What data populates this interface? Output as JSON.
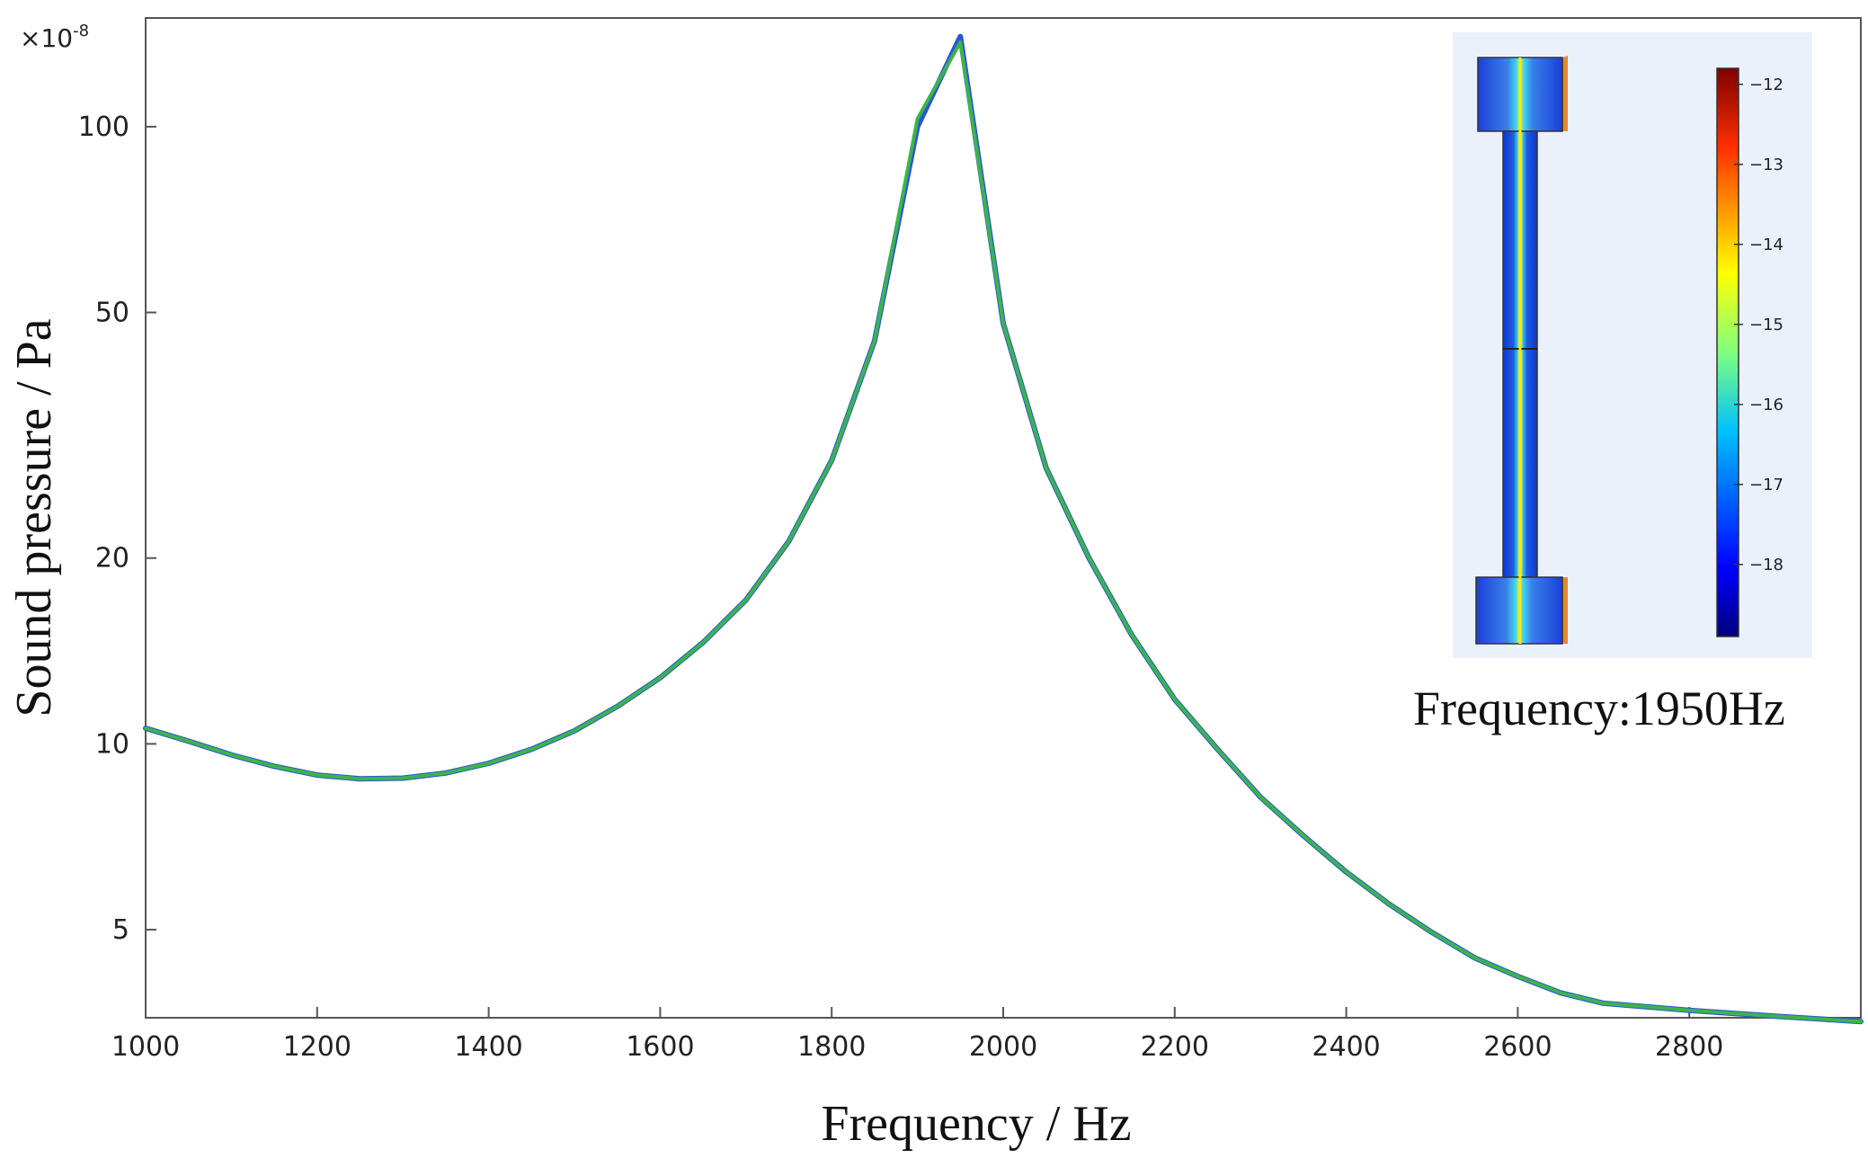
{
  "chart_data": {
    "type": "line",
    "xlabel": "Frequency / Hz",
    "ylabel": "Sound pressure / Pa",
    "y_multiplier": "×10",
    "y_multiplier_exp": "-8",
    "y_scale": "log",
    "xlim": [
      1000,
      3000
    ],
    "ylim": [
      3.6,
      150
    ],
    "x_ticks": [
      1000,
      1200,
      1400,
      1600,
      1800,
      2000,
      2200,
      2400,
      2600,
      2800
    ],
    "x_tick_labels": [
      "1000",
      "1200",
      "1400",
      "1600",
      "1800",
      "2000",
      "2200",
      "2400",
      "2600",
      "2800"
    ],
    "y_ticks": [
      5,
      10,
      20,
      50,
      100
    ],
    "y_tick_labels": [
      "5",
      "10",
      "20",
      "50",
      "100"
    ],
    "grid": false,
    "series": [
      {
        "color": "#2a56d6",
        "x": [
          1000,
          1050,
          1100,
          1150,
          1200,
          1250,
          1300,
          1350,
          1400,
          1450,
          1500,
          1550,
          1600,
          1650,
          1700,
          1750,
          1800,
          1850,
          1900,
          1950,
          2000,
          2050,
          2100,
          2150,
          2200,
          2250,
          2300,
          2350,
          2400,
          2450,
          2500,
          2550,
          2600,
          2650,
          2700,
          2800,
          2900,
          3000
        ],
        "y": [
          10.6,
          10.1,
          9.6,
          9.2,
          8.9,
          8.78,
          8.8,
          8.97,
          9.3,
          9.8,
          10.5,
          11.5,
          12.8,
          14.6,
          17.1,
          21.3,
          28.8,
          45,
          100,
          140,
          48,
          28,
          20,
          15,
          11.8,
          9.8,
          8.2,
          7.1,
          6.2,
          5.5,
          4.95,
          4.5,
          4.2,
          3.95,
          3.8,
          3.7,
          3.62,
          3.55
        ]
      },
      {
        "color": "#3cb44b",
        "x": [
          1000,
          1050,
          1100,
          1150,
          1200,
          1250,
          1300,
          1350,
          1400,
          1450,
          1500,
          1550,
          1600,
          1650,
          1700,
          1750,
          1800,
          1850,
          1900,
          1950,
          2000,
          2050,
          2100,
          2150,
          2200,
          2250,
          2300,
          2350,
          2400,
          2450,
          2500,
          2550,
          2600,
          2650,
          2700,
          2800,
          2900,
          3000
        ],
        "y": [
          10.6,
          10.1,
          9.6,
          9.2,
          8.9,
          8.78,
          8.8,
          8.97,
          9.3,
          9.8,
          10.5,
          11.5,
          12.8,
          14.6,
          17.1,
          21.3,
          28.8,
          45,
          103,
          137,
          48,
          28,
          20,
          15,
          11.8,
          9.8,
          8.2,
          7.1,
          6.2,
          5.5,
          4.95,
          4.5,
          4.2,
          3.95,
          3.8,
          3.7,
          3.62,
          3.55
        ]
      }
    ],
    "inset": {
      "caption": "Frequency:1950Hz",
      "colorbar_labels": [
        "−12",
        "−13",
        "−14",
        "−15",
        "−16",
        "−17",
        "−18"
      ],
      "colorbar_values": [
        -12,
        -13,
        -14,
        -15,
        -16,
        -17,
        -18
      ],
      "colorbar_range": [
        -18.9,
        -11.8
      ]
    }
  }
}
